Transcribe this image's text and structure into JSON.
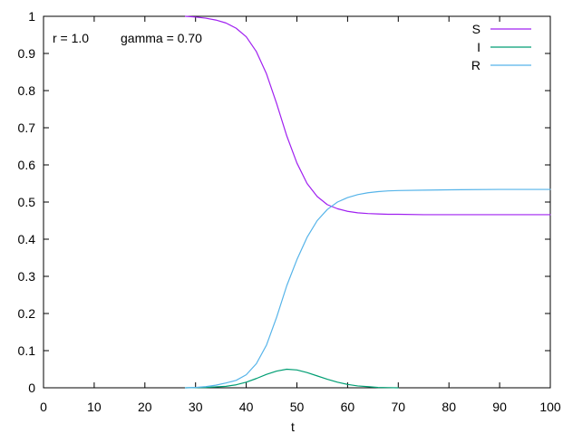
{
  "chart_data": {
    "type": "line",
    "title": "",
    "xlabel": "t",
    "ylabel": "",
    "xlim": [
      0,
      100
    ],
    "ylim": [
      0,
      1
    ],
    "xticks": [
      0,
      10,
      20,
      30,
      40,
      50,
      60,
      70,
      80,
      90,
      100
    ],
    "yticks": [
      0,
      0.1,
      0.2,
      0.3,
      0.4,
      0.5,
      0.6,
      0.7,
      0.8,
      0.9,
      1
    ],
    "xtick_labels": [
      "0",
      "10",
      "20",
      "30",
      "40",
      "50",
      "60",
      "70",
      "80",
      "90",
      "100"
    ],
    "ytick_labels": [
      "0",
      "0.1",
      "0.2",
      "0.3",
      "0.4",
      "0.5",
      "0.6",
      "0.7",
      "0.8",
      "0.9",
      "1"
    ],
    "grid": false,
    "legend_position": "top-right",
    "annotations": {
      "r_text": "r = 1.0",
      "gamma_text": "gamma = 0.70"
    },
    "series": [
      {
        "name": "S",
        "color": "#a020f0",
        "x": [
          28,
          30,
          32,
          34,
          36,
          38,
          40,
          42,
          44,
          46,
          48,
          50,
          52,
          54,
          56,
          58,
          60,
          62,
          64,
          66,
          68,
          70,
          75,
          80,
          90,
          100
        ],
        "y": [
          1.0,
          0.998,
          0.995,
          0.99,
          0.982,
          0.968,
          0.945,
          0.905,
          0.845,
          0.765,
          0.678,
          0.605,
          0.55,
          0.515,
          0.493,
          0.482,
          0.475,
          0.471,
          0.469,
          0.468,
          0.467,
          0.467,
          0.466,
          0.466,
          0.466,
          0.466
        ]
      },
      {
        "name": "I",
        "color": "#009e73",
        "x": [
          28,
          32,
          36,
          38,
          40,
          42,
          44,
          46,
          48,
          50,
          52,
          54,
          56,
          58,
          60,
          62,
          64,
          66,
          68,
          70
        ],
        "y": [
          0.0,
          0.001,
          0.004,
          0.008,
          0.015,
          0.025,
          0.036,
          0.045,
          0.05,
          0.048,
          0.041,
          0.032,
          0.023,
          0.015,
          0.009,
          0.005,
          0.003,
          0.001,
          0.0005,
          0.0
        ]
      },
      {
        "name": "R",
        "color": "#56b4e9",
        "x": [
          28,
          30,
          32,
          34,
          36,
          38,
          40,
          42,
          44,
          46,
          48,
          50,
          52,
          54,
          56,
          58,
          60,
          62,
          64,
          66,
          68,
          70,
          75,
          80,
          90,
          100
        ],
        "y": [
          0.0,
          0.001,
          0.003,
          0.007,
          0.013,
          0.02,
          0.035,
          0.065,
          0.115,
          0.19,
          0.275,
          0.345,
          0.405,
          0.45,
          0.48,
          0.5,
          0.512,
          0.52,
          0.525,
          0.528,
          0.53,
          0.531,
          0.532,
          0.533,
          0.534,
          0.534
        ]
      }
    ]
  }
}
